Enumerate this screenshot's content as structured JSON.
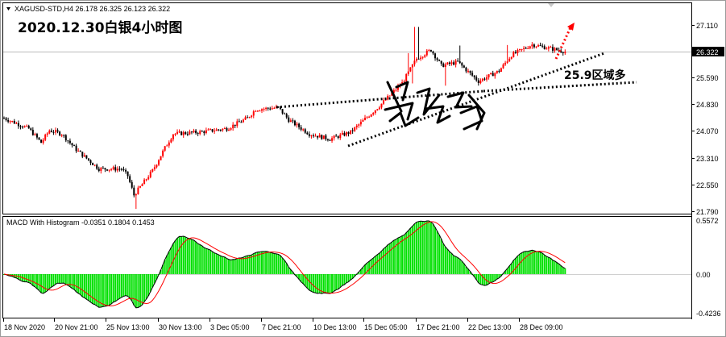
{
  "price_panel": {
    "header": "XAGUSD-STD,H4  26.178 26.325 26.123 26.322",
    "title": "2020.12.30白银4小时图",
    "annotation": "25.9区域多",
    "current_price_label": "26.322",
    "y_ticks": [
      "27.110",
      "26.322",
      "25.590",
      "24.830",
      "24.070",
      "23.310",
      "22.550",
      "21.790"
    ],
    "colors": {
      "bull": "#ff0000",
      "bear": "#000000",
      "trendline": "#000000",
      "arrow": "#ff0000"
    }
  },
  "macd_panel": {
    "header": "MACD With Histogram -0.0351 0.1804 0.1453",
    "y_ticks": [
      "0.5572",
      "0.00",
      "-0.4236"
    ],
    "colors": {
      "histogram": "#00e000",
      "macd": "#000000",
      "signal": "#ff0000"
    }
  },
  "x_axis": {
    "labels": [
      "18 Nov 2020",
      "20 Nov 21:00",
      "25 Nov 13:00",
      "30 Nov 13:00",
      "3 Dec 05:00",
      "7 Dec 21:00",
      "10 Dec 13:00",
      "15 Dec 05:00",
      "17 Dec 21:00",
      "22 Dec 13:00",
      "28 Dec 09:00"
    ]
  },
  "chart_data": {
    "type": "candlestick",
    "symbol": "XAGUSD-STD",
    "timeframe": "H4",
    "ohlc_last": {
      "open": 26.178,
      "high": 26.325,
      "low": 26.123,
      "close": 26.322
    },
    "ylim": [
      21.79,
      27.5
    ],
    "close_path": [
      {
        "x": "18 Nov 2020",
        "y": 24.45
      },
      {
        "x": "20 Nov 21:00",
        "y": 23.95
      },
      {
        "x": "20 Nov 21:00",
        "y": 24.1
      },
      {
        "x": "25 Nov 13:00",
        "y": 23.0
      },
      {
        "x": "25 Nov 13:00",
        "y": 22.2
      },
      {
        "x": "30 Nov 13:00",
        "y": 22.95
      },
      {
        "x": "30 Nov 13:00",
        "y": 24.0
      },
      {
        "x": "3 Dec 05:00",
        "y": 24.05
      },
      {
        "x": "3 Dec 05:00",
        "y": 24.15
      },
      {
        "x": "7 Dec 21:00",
        "y": 24.75
      },
      {
        "x": "7 Dec 21:00",
        "y": 24.3
      },
      {
        "x": "10 Dec 13:00",
        "y": 24.0
      },
      {
        "x": "10 Dec 13:00",
        "y": 23.85
      },
      {
        "x": "15 Dec 05:00",
        "y": 24.4
      },
      {
        "x": "15 Dec 05:00",
        "y": 25.1
      },
      {
        "x": "17 Dec 21:00",
        "y": 26.1
      },
      {
        "x": "17 Dec 21:00",
        "y": 25.9
      },
      {
        "x": "22 Dec 13:00",
        "y": 25.5
      },
      {
        "x": "22 Dec 13:00",
        "y": 25.75
      },
      {
        "x": "28 Dec 09:00",
        "y": 26.5
      },
      {
        "x": "28 Dec 09:00",
        "y": 26.322
      }
    ],
    "macd": {
      "last": {
        "histogram": -0.0351,
        "macd": 0.1804,
        "signal": 0.1453
      },
      "ylim": [
        -0.4236,
        0.5572
      ]
    }
  }
}
